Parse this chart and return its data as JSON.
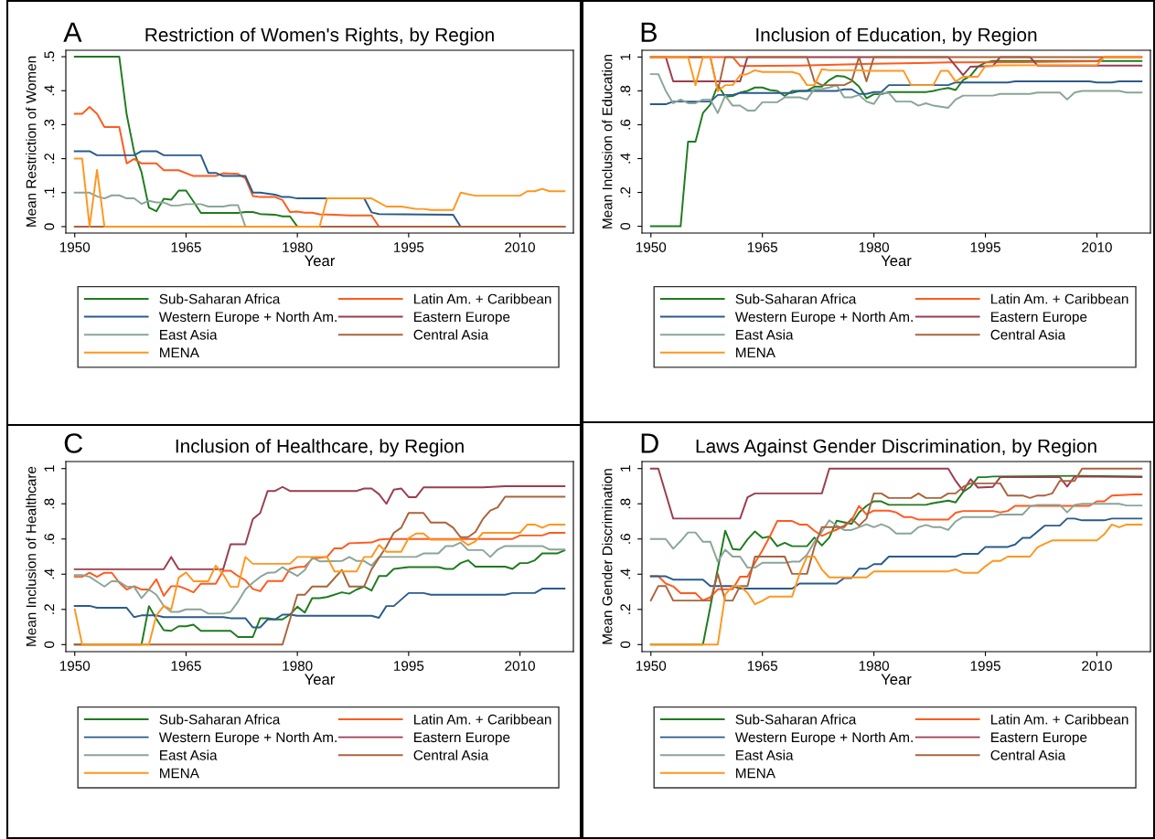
{
  "chart_data": [
    {
      "type": "line",
      "title": "Restriction of Women's Rights, by Region",
      "xlabel": "Year",
      "ylabel": "Mean Restriction of Women",
      "annotations": [
        "A"
      ],
      "legend": "bottom",
      "xlim": [
        1948.8,
        2017.2
      ],
      "xticks": [
        1950,
        1965,
        1980,
        1995,
        2010
      ],
      "ylim": [
        -0.019,
        0.519
      ],
      "yticks": [
        {
          "value": 0,
          "label": "0"
        },
        {
          "value": 0.1,
          "label": ".1"
        },
        {
          "value": 0.2,
          "label": ".2"
        },
        {
          "value": 0.3,
          "label": ".3"
        },
        {
          "value": 0.4,
          "label": ".4"
        },
        {
          "value": 0.5,
          "label": ".5"
        }
      ],
      "series": [
        {
          "name": "Sub-Saharan Africa",
          "color": "#1e7b1e",
          "x": [
            1950,
            1956,
            1957,
            1958,
            1959,
            1960,
            1961,
            1962,
            1963,
            1964,
            1965,
            1966,
            1967,
            1972,
            1973,
            1974,
            1975,
            1977,
            1978,
            1979,
            1980,
            2016
          ],
          "values": [
            0.5,
            0.5,
            0.33,
            0.22,
            0.16,
            0.056,
            0.045,
            0.082,
            0.079,
            0.106,
            0.106,
            0.074,
            0.04,
            0.04,
            0.043,
            0.043,
            0.037,
            0.035,
            0.03,
            0.03,
            0,
            0
          ]
        },
        {
          "name": "Latin Am. + Caribbean",
          "color": "#ff5a1e",
          "x": [
            1950,
            1951,
            1952,
            1953,
            1954,
            1956,
            1957,
            1958,
            1959,
            1961,
            1962,
            1964,
            1966,
            1969,
            1970,
            1972,
            1973,
            1974,
            1975,
            1977,
            1978,
            1979,
            1980,
            1981,
            1982,
            1983,
            1985,
            1987,
            1990,
            1991,
            2016
          ],
          "values": [
            0.332,
            0.332,
            0.352,
            0.332,
            0.293,
            0.293,
            0.186,
            0.199,
            0.186,
            0.186,
            0.166,
            0.166,
            0.149,
            0.149,
            0.157,
            0.155,
            0.142,
            0.09,
            0.087,
            0.087,
            0.078,
            0.043,
            0.044,
            0.041,
            0.041,
            0.036,
            0.035,
            0.033,
            0.033,
            0,
            0
          ]
        },
        {
          "name": "Western Europe + North Am.",
          "color": "#2a5b8c",
          "x": [
            1950,
            1952,
            1953,
            1958,
            1959,
            1961,
            1962,
            1967,
            1968,
            1969,
            1970,
            1973,
            1974,
            1975,
            1977,
            1978,
            1979,
            1980,
            1989,
            1990,
            1991,
            2001,
            2002,
            2016
          ],
          "values": [
            0.222,
            0.222,
            0.21,
            0.21,
            0.222,
            0.222,
            0.21,
            0.21,
            0.158,
            0.158,
            0.149,
            0.149,
            0.1,
            0.1,
            0.094,
            0.087,
            0.087,
            0.083,
            0.083,
            0.042,
            0.037,
            0.035,
            0,
            0
          ]
        },
        {
          "name": "Eastern Europe",
          "color": "#9a3d4f"
        },
        {
          "name": "East Asia",
          "color": "#8aa597",
          "x": [
            1950,
            1952,
            1953,
            1954,
            1955,
            1956,
            1957,
            1958,
            1959,
            1960,
            1961,
            1962,
            1963,
            1964,
            1965,
            1967,
            1968,
            1970,
            1971,
            1972,
            1973
          ],
          "values": [
            0.1,
            0.1,
            0.089,
            0.083,
            0.092,
            0.092,
            0.083,
            0.083,
            0.067,
            0.076,
            0.071,
            0.071,
            0.062,
            0.062,
            0.066,
            0.066,
            0.059,
            0.059,
            0.063,
            0.063,
            0
          ]
        },
        {
          "name": "Central Asia",
          "color": "#a9643c",
          "x": [
            1950,
            2016
          ],
          "values": [
            0,
            0
          ]
        },
        {
          "name": "MENA",
          "color": "#ff961e",
          "x": [
            1950,
            1951,
            1952,
            1953,
            1954,
            1983,
            1984,
            1990,
            1992,
            1994,
            1996,
            1997,
            1998,
            2001,
            2002,
            2004,
            2010,
            2011,
            2012,
            2013,
            2014,
            2016
          ],
          "values": [
            0.2,
            0.2,
            0,
            0.167,
            0,
            0,
            0.083,
            0.083,
            0.059,
            0.059,
            0.052,
            0.052,
            0.049,
            0.049,
            0.1,
            0.091,
            0.091,
            0.104,
            0.104,
            0.111,
            0.104,
            0.104
          ]
        }
      ]
    },
    {
      "type": "line",
      "title": "Inclusion of Education, by Region",
      "xlabel": "Year",
      "ylabel": "Mean Inclusion of Education",
      "annotations": [
        "B"
      ],
      "legend": "bottom",
      "xlim": [
        1948.8,
        2017.2
      ],
      "xticks": [
        1950,
        1965,
        1980,
        1995,
        2010
      ],
      "ylim": [
        -0.04,
        1.04
      ],
      "yticks": [
        {
          "value": 0,
          "label": "0"
        },
        {
          "value": 0.2,
          "label": ".2"
        },
        {
          "value": 0.4,
          "label": ".4"
        },
        {
          "value": 0.6,
          "label": ".6"
        },
        {
          "value": 0.8,
          "label": ".8"
        },
        {
          "value": 1,
          "label": "1"
        }
      ],
      "series": [
        {
          "name": "Sub-Saharan Africa",
          "color": "#1e7b1e",
          "x": [
            1950,
            1954,
            1955,
            1956,
            1957,
            1958,
            1959,
            1960,
            1961,
            1962,
            1963,
            1964,
            1965,
            1966,
            1967,
            1968,
            1969,
            1971,
            1972,
            1973,
            1974,
            1975,
            1976,
            1977,
            1978,
            1979,
            1980,
            1981,
            1982,
            1987,
            1988,
            1989,
            1990,
            1991,
            1992,
            1993,
            1994,
            1995,
            1996,
            2016
          ],
          "values": [
            0,
            0,
            0.5,
            0.5,
            0.669,
            0.72,
            0.834,
            0.766,
            0.77,
            0.79,
            0.8,
            0.82,
            0.82,
            0.805,
            0.8,
            0.77,
            0.8,
            0.8,
            0.825,
            0.825,
            0.864,
            0.889,
            0.885,
            0.864,
            0.825,
            0.756,
            0.78,
            0.78,
            0.793,
            0.793,
            0.8,
            0.81,
            0.817,
            0.805,
            0.864,
            0.889,
            0.943,
            0.967,
            0.977,
            0.977
          ]
        },
        {
          "name": "Latin Am. + Caribbean",
          "color": "#ff5a1e",
          "x": [
            1950,
            1961,
            1962,
            1970,
            1980,
            1990,
            2000,
            2010,
            2011,
            2016
          ],
          "values": [
            1,
            1,
            0.947,
            0.95,
            0.96,
            0.968,
            0.97,
            0.975,
            1,
            1
          ]
        },
        {
          "name": "Western Europe + North Am.",
          "color": "#2a5b8c",
          "x": [
            1950,
            1952,
            1953,
            1958,
            1959,
            1961,
            1962,
            1969,
            1970,
            1975,
            1976,
            1977,
            1978,
            1979,
            1980,
            1981,
            1982,
            1990,
            1991,
            1998,
            1999,
            2009,
            2010,
            2012,
            2013,
            2016
          ],
          "values": [
            0.721,
            0.721,
            0.737,
            0.737,
            0.776,
            0.776,
            0.788,
            0.788,
            0.8,
            0.8,
            0.809,
            0.809,
            0.782,
            0.782,
            0.793,
            0.793,
            0.834,
            0.834,
            0.85,
            0.85,
            0.856,
            0.856,
            0.85,
            0.85,
            0.856,
            0.856
          ]
        },
        {
          "name": "Eastern Europe",
          "color": "#9a3d4f",
          "x": [
            1950,
            1952,
            1953,
            1962,
            1963,
            1990,
            1992,
            1993,
            1996,
            1997,
            2001,
            2002,
            2016
          ],
          "values": [
            1,
            1,
            0.856,
            0.856,
            1,
            1,
            0.893,
            0.943,
            0.947,
            1,
            1,
            0.95,
            0.95
          ]
        },
        {
          "name": "East Asia",
          "color": "#8aa597",
          "x": [
            1950,
            1951,
            1952,
            1953,
            1954,
            1955,
            1956,
            1957,
            1958,
            1959,
            1960,
            1961,
            1962,
            1963,
            1964,
            1965,
            1967,
            1968,
            1970,
            1971,
            1972,
            1973,
            1974,
            1975,
            1976,
            1977,
            1978,
            1979,
            1980,
            1981,
            1982,
            1983,
            1985,
            1986,
            1987,
            1988,
            1990,
            1991,
            1992,
            1996,
            1997,
            2001,
            2002,
            2005,
            2006,
            2007,
            2008,
            2013,
            2014,
            2016
          ],
          "values": [
            0.899,
            0.899,
            0.8,
            0.727,
            0.749,
            0.727,
            0.727,
            0.749,
            0.749,
            0.669,
            0.772,
            0.713,
            0.713,
            0.684,
            0.684,
            0.733,
            0.733,
            0.762,
            0.762,
            0.749,
            0.811,
            0.811,
            0.82,
            0.834,
            0.762,
            0.762,
            0.776,
            0.737,
            0.723,
            0.788,
            0.788,
            0.737,
            0.737,
            0.713,
            0.727,
            0.713,
            0.7,
            0.749,
            0.772,
            0.772,
            0.782,
            0.782,
            0.79,
            0.79,
            0.749,
            0.79,
            0.8,
            0.8,
            0.79,
            0.79
          ]
        },
        {
          "name": "Central Asia",
          "color": "#a9643c",
          "x": [
            1950,
            1958,
            1959,
            1960,
            1971,
            1972,
            1973,
            1976,
            1977,
            1978,
            1979,
            1980,
            2016
          ],
          "values": [
            1,
            1,
            0.8,
            1,
            1,
            0.856,
            0.834,
            0.834,
            0.856,
            1,
            0.856,
            1,
            1
          ]
        },
        {
          "name": "MENA",
          "color": "#ff961e",
          "x": [
            1950,
            1955,
            1956,
            1957,
            1958,
            1959,
            1960,
            1961,
            1962,
            1963,
            1964,
            1965,
            1969,
            1970,
            1971,
            1972,
            1973,
            1974,
            1978,
            1979,
            1984,
            1985,
            1988,
            1989,
            1990,
            1991,
            1992,
            1994,
            1995,
            1997,
            2010,
            2011,
            2016
          ],
          "values": [
            1,
            1,
            0.834,
            1,
            1,
            0.8,
            0.834,
            0.834,
            0.893,
            0.9,
            0.922,
            0.912,
            0.912,
            0.899,
            0.834,
            0.834,
            0.928,
            0.922,
            0.922,
            0.918,
            0.918,
            0.834,
            0.834,
            0.918,
            0.918,
            0.856,
            0.883,
            0.883,
            0.947,
            0.951,
            0.953,
            1,
            1
          ]
        }
      ]
    },
    {
      "type": "line",
      "title": "Inclusion of Healthcare, by Region",
      "xlabel": "Year",
      "ylabel": "Mean Inclusion of Healthcare",
      "annotations": [
        "C"
      ],
      "legend": "bottom",
      "xlim": [
        1948.8,
        2017.2
      ],
      "xticks": [
        1950,
        1965,
        1980,
        1995,
        2010
      ],
      "ylim": [
        -0.04,
        1.04
      ],
      "yticks": [
        {
          "value": 0,
          "label": "0"
        },
        {
          "value": 0.2,
          "label": ".2"
        },
        {
          "value": 0.4,
          "label": ".4"
        },
        {
          "value": 0.6,
          "label": ".6"
        },
        {
          "value": 0.8,
          "label": ".8"
        },
        {
          "value": 1,
          "label": "1"
        }
      ],
      "series": [
        {
          "name": "Sub-Saharan Africa",
          "color": "#1e7b1e",
          "x": [
            1950,
            1959,
            1960,
            1961,
            1962,
            1963,
            1964,
            1965,
            1966,
            1967,
            1971,
            1972,
            1974,
            1975,
            1976,
            1977,
            1978,
            1979,
            1980,
            1981,
            1982,
            1983,
            1984,
            1986,
            1987,
            1988,
            1989,
            1990,
            1991,
            1992,
            1993,
            1995,
            1999,
            2000,
            2001,
            2002,
            2003,
            2004,
            2008,
            2009,
            2010,
            2011,
            2012,
            2013,
            2015,
            2016
          ],
          "values": [
            0,
            0,
            0.219,
            0.146,
            0.082,
            0.078,
            0.104,
            0.104,
            0.113,
            0.078,
            0.078,
            0.043,
            0.043,
            0.15,
            0.15,
            0.143,
            0.143,
            0.17,
            0.215,
            0.182,
            0.264,
            0.264,
            0.27,
            0.297,
            0.289,
            0.313,
            0.33,
            0.307,
            0.39,
            0.39,
            0.43,
            0.44,
            0.44,
            0.43,
            0.43,
            0.463,
            0.479,
            0.443,
            0.443,
            0.43,
            0.463,
            0.463,
            0.479,
            0.518,
            0.518,
            0.535
          ]
        },
        {
          "name": "Latin Am. + Caribbean",
          "color": "#ff5a1e",
          "x": [
            1950,
            1951,
            1952,
            1953,
            1954,
            1955,
            1956,
            1957,
            1958,
            1959,
            1960,
            1961,
            1962,
            1963,
            1964,
            1965,
            1966,
            1967,
            1969,
            1970,
            1971,
            1972,
            1973,
            1974,
            1975,
            1976,
            1978,
            1979,
            1980,
            1981,
            1982,
            1984,
            1985,
            1986,
            1987,
            1990,
            1991,
            1992,
            2009,
            2010,
            2013,
            2014,
            2016
          ],
          "values": [
            0.385,
            0.385,
            0.408,
            0.385,
            0.408,
            0.408,
            0.352,
            0.313,
            0.332,
            0.313,
            0.313,
            0.371,
            0.277,
            0.332,
            0.332,
            0.316,
            0.297,
            0.346,
            0.346,
            0.42,
            0.42,
            0.39,
            0.365,
            0.316,
            0.303,
            0.361,
            0.361,
            0.43,
            0.44,
            0.443,
            0.488,
            0.498,
            0.547,
            0.547,
            0.576,
            0.58,
            0.596,
            0.6,
            0.6,
            0.62,
            0.62,
            0.635,
            0.635
          ]
        },
        {
          "name": "Western Europe + North Am.",
          "color": "#2a5b8c",
          "x": [
            1950,
            1952,
            1953,
            1957,
            1958,
            1959,
            1961,
            1962,
            1970,
            1971,
            1973,
            1974,
            1975,
            1976,
            1977,
            1978,
            1979,
            1980,
            1990,
            1991,
            1992,
            1993,
            1995,
            1997,
            1998,
            2008,
            2009,
            2012,
            2013,
            2016
          ],
          "values": [
            0.22,
            0.22,
            0.209,
            0.209,
            0.156,
            0.166,
            0.166,
            0.156,
            0.156,
            0.15,
            0.15,
            0.098,
            0.098,
            0.143,
            0.143,
            0.17,
            0.17,
            0.164,
            0.164,
            0.152,
            0.219,
            0.219,
            0.293,
            0.293,
            0.283,
            0.283,
            0.293,
            0.293,
            0.318,
            0.318
          ]
        },
        {
          "name": "Eastern Europe",
          "color": "#9a3d4f",
          "x": [
            1950,
            1962,
            1963,
            1964,
            1970,
            1971,
            1973,
            1974,
            1975,
            1976,
            1977,
            1978,
            1979,
            1988,
            1989,
            1990,
            1991,
            1992,
            1993,
            1994,
            1995,
            1996,
            1997,
            2005,
            2008,
            2016
          ],
          "values": [
            0.428,
            0.428,
            0.498,
            0.428,
            0.428,
            0.57,
            0.57,
            0.713,
            0.748,
            0.873,
            0.873,
            0.896,
            0.873,
            0.873,
            0.887,
            0.887,
            0.855,
            0.8,
            0.88,
            0.887,
            0.838,
            0.838,
            0.893,
            0.893,
            0.9,
            0.9
          ]
        },
        {
          "name": "East Asia",
          "color": "#8aa597",
          "x": [
            1950,
            1951,
            1952,
            1953,
            1954,
            1955,
            1956,
            1957,
            1958,
            1959,
            1960,
            1961,
            1962,
            1963,
            1964,
            1965,
            1967,
            1968,
            1970,
            1971,
            1972,
            1973,
            1974,
            1975,
            1976,
            1977,
            1978,
            1979,
            1980,
            1981,
            1982,
            1983,
            1986,
            1987,
            1988,
            1989,
            1990,
            1991,
            1996,
            1997,
            1999,
            2000,
            2001,
            2002,
            2003,
            2005,
            2006,
            2007,
            2008,
            2013,
            2014,
            2016
          ],
          "values": [
            0.395,
            0.395,
            0.385,
            0.357,
            0.33,
            0.361,
            0.357,
            0.33,
            0.328,
            0.264,
            0.313,
            0.283,
            0.22,
            0.186,
            0.186,
            0.2,
            0.2,
            0.176,
            0.176,
            0.186,
            0.244,
            0.313,
            0.352,
            0.385,
            0.408,
            0.41,
            0.44,
            0.414,
            0.39,
            0.424,
            0.494,
            0.473,
            0.475,
            0.498,
            0.475,
            0.475,
            0.449,
            0.498,
            0.498,
            0.518,
            0.518,
            0.56,
            0.56,
            0.58,
            0.537,
            0.537,
            0.498,
            0.54,
            0.56,
            0.56,
            0.54,
            0.54
          ]
        },
        {
          "name": "Central Asia",
          "color": "#a9643c",
          "x": [
            1950,
            1978,
            1980,
            1981,
            1982,
            1984,
            1986,
            1987,
            1989,
            1990,
            1992,
            1993,
            1994,
            1995,
            1997,
            1998,
            2000,
            2001,
            2002,
            2003,
            2004,
            2005,
            2006,
            2007,
            2008,
            2016
          ],
          "values": [
            0,
            0,
            0.283,
            0.283,
            0.33,
            0.33,
            0.424,
            0.33,
            0.33,
            0.428,
            0.557,
            0.635,
            0.664,
            0.748,
            0.748,
            0.693,
            0.693,
            0.664,
            0.61,
            0.61,
            0.64,
            0.713,
            0.762,
            0.78,
            0.84,
            0.84
          ]
        },
        {
          "name": "MENA",
          "color": "#ff961e",
          "x": [
            1950,
            1951,
            1960,
            1961,
            1962,
            1963,
            1964,
            1965,
            1966,
            1968,
            1969,
            1970,
            1971,
            1972,
            1973,
            1974,
            1979,
            1980,
            1984,
            1985,
            1988,
            1989,
            1990,
            1991,
            1992,
            1994,
            1995,
            1996,
            1997,
            1998,
            2002,
            2003,
            2004,
            2005,
            2010,
            2011,
            2012,
            2013,
            2014,
            2016
          ],
          "values": [
            0.2,
            0,
            0,
            0.166,
            0.22,
            0.2,
            0.38,
            0.41,
            0.36,
            0.36,
            0.449,
            0.4,
            0.328,
            0.328,
            0.498,
            0.459,
            0.459,
            0.498,
            0.498,
            0.416,
            0.416,
            0.498,
            0.498,
            0.566,
            0.527,
            0.527,
            0.605,
            0.631,
            0.631,
            0.596,
            0.596,
            0.566,
            0.586,
            0.635,
            0.635,
            0.682,
            0.682,
            0.664,
            0.682,
            0.682
          ]
        }
      ]
    },
    {
      "type": "line",
      "title": "Laws Against Gender Discrimination, by Region",
      "xlabel": "Year",
      "ylabel": "Mean Gender Discrimination",
      "annotations": [
        "D"
      ],
      "legend": "bottom",
      "xlim": [
        1948.8,
        2017.2
      ],
      "xticks": [
        1950,
        1965,
        1980,
        1995,
        2010
      ],
      "ylim": [
        -0.04,
        1.04
      ],
      "yticks": [
        {
          "value": 0,
          "label": "0"
        },
        {
          "value": 0.2,
          "label": ".2"
        },
        {
          "value": 0.4,
          "label": ".4"
        },
        {
          "value": 0.6,
          "label": ".6"
        },
        {
          "value": 0.8,
          "label": ".8"
        },
        {
          "value": 1,
          "label": "1"
        }
      ],
      "series": [
        {
          "name": "Sub-Saharan Africa",
          "color": "#1e7b1e",
          "x": [
            1950,
            1957,
            1960,
            1961,
            1962,
            1963,
            1964,
            1965,
            1966,
            1967,
            1968,
            1969,
            1971,
            1972,
            1973,
            1974,
            1975,
            1977,
            1978,
            1979,
            1980,
            1981,
            1982,
            1987,
            1988,
            1990,
            1991,
            1992,
            1993,
            1994,
            1995,
            1996,
            2008,
            2016
          ],
          "values": [
            0,
            0,
            0.647,
            0.543,
            0.539,
            0.598,
            0.643,
            0.606,
            0.614,
            0.559,
            0.578,
            0.559,
            0.559,
            0.608,
            0.563,
            0.608,
            0.704,
            0.686,
            0.751,
            0.788,
            0.814,
            0.814,
            0.794,
            0.794,
            0.804,
            0.818,
            0.808,
            0.867,
            0.896,
            0.951,
            0.951,
            0.955,
            0.959,
            0.955
          ]
        },
        {
          "name": "Latin Am. + Caribbean",
          "color": "#ff5a1e",
          "x": [
            1950,
            1951,
            1952,
            1953,
            1954,
            1956,
            1957,
            1958,
            1959,
            1961,
            1962,
            1963,
            1964,
            1965,
            1966,
            1967,
            1969,
            1970,
            1971,
            1972,
            1973,
            1974,
            1975,
            1976,
            1977,
            1978,
            1979,
            1980,
            1982,
            1983,
            1984,
            1985,
            1986,
            1990,
            1991,
            1992,
            1996,
            1997,
            1998,
            1999,
            2009,
            2010,
            2011,
            2012,
            2015,
            2016
          ],
          "values": [
            0.388,
            0.388,
            0.347,
            0.331,
            0.292,
            0.292,
            0.251,
            0.269,
            0.314,
            0.314,
            0.386,
            0.386,
            0.465,
            0.535,
            0.614,
            0.702,
            0.702,
            0.682,
            0.682,
            0.647,
            0.618,
            0.637,
            0.653,
            0.676,
            0.706,
            0.788,
            0.739,
            0.761,
            0.761,
            0.751,
            0.725,
            0.725,
            0.71,
            0.71,
            0.749,
            0.759,
            0.759,
            0.751,
            0.759,
            0.788,
            0.788,
            0.814,
            0.814,
            0.847,
            0.853,
            0.853
          ]
        },
        {
          "name": "Western Europe + North Am.",
          "color": "#2a5b8c",
          "x": [
            1950,
            1952,
            1953,
            1957,
            1958,
            1961,
            1962,
            1969,
            1970,
            1975,
            1976,
            1977,
            1978,
            1979,
            1980,
            1981,
            1982,
            1991,
            1992,
            1994,
            1995,
            1998,
            1999,
            2000,
            2001,
            2002,
            2003,
            2005,
            2006,
            2007,
            2008,
            2011,
            2012,
            2016
          ],
          "values": [
            0.388,
            0.388,
            0.369,
            0.369,
            0.333,
            0.333,
            0.318,
            0.318,
            0.347,
            0.347,
            0.378,
            0.378,
            0.431,
            0.431,
            0.457,
            0.457,
            0.5,
            0.5,
            0.516,
            0.516,
            0.555,
            0.555,
            0.569,
            0.606,
            0.606,
            0.641,
            0.676,
            0.676,
            0.716,
            0.716,
            0.706,
            0.706,
            0.716,
            0.716
          ]
        },
        {
          "name": "Eastern Europe",
          "color": "#9a3d4f",
          "x": [
            1950,
            1951,
            1953,
            1962,
            1963,
            1964,
            1973,
            1974,
            1990,
            1991,
            1992,
            1993,
            1994,
            1996,
            1997,
            2005,
            2006,
            2007,
            2016
          ],
          "values": [
            1,
            1,
            0.716,
            0.716,
            0.837,
            0.859,
            0.859,
            1,
            1,
            0.93,
            0.873,
            0.94,
            0.892,
            0.896,
            0.951,
            0.951,
            0.898,
            0.955,
            0.951
          ]
        },
        {
          "name": "East Asia",
          "color": "#8aa597",
          "x": [
            1950,
            1952,
            1953,
            1954,
            1955,
            1956,
            1957,
            1958,
            1959,
            1960,
            1961,
            1962,
            1963,
            1964,
            1965,
            1968,
            1969,
            1970,
            1971,
            1972,
            1973,
            1974,
            1975,
            1976,
            1977,
            1978,
            1979,
            1980,
            1981,
            1982,
            1983,
            1985,
            1986,
            1987,
            1988,
            1989,
            1990,
            1991,
            1992,
            1996,
            1997,
            2000,
            2001,
            2002,
            2005,
            2006,
            2007,
            2008,
            2013,
            2014,
            2016
          ],
          "values": [
            0.6,
            0.6,
            0.545,
            0.588,
            0.637,
            0.637,
            0.584,
            0.584,
            0.471,
            0.539,
            0.5,
            0.5,
            0.437,
            0.437,
            0.465,
            0.465,
            0.471,
            0.471,
            0.51,
            0.584,
            0.641,
            0.706,
            0.676,
            0.651,
            0.651,
            0.667,
            0.684,
            0.667,
            0.684,
            0.667,
            0.631,
            0.631,
            0.667,
            0.68,
            0.667,
            0.667,
            0.651,
            0.7,
            0.725,
            0.725,
            0.739,
            0.739,
            0.784,
            0.794,
            0.794,
            0.751,
            0.794,
            0.8,
            0.8,
            0.79,
            0.79
          ]
        },
        {
          "name": "Central Asia",
          "color": "#a9643c",
          "x": [
            1950,
            1951,
            1952,
            1953,
            1958,
            1959,
            1960,
            1961,
            1962,
            1963,
            1964,
            1968,
            1969,
            1971,
            1972,
            1973,
            1976,
            1977,
            1978,
            1979,
            1980,
            1981,
            1982,
            1985,
            1986,
            1987,
            1989,
            1990,
            1991,
            1992,
            1993,
            1997,
            1998,
            2000,
            2001,
            2002,
            2003,
            2004,
            2005,
            2007,
            2008,
            2016
          ],
          "values": [
            0.251,
            0.333,
            0.333,
            0.25,
            0.25,
            0.402,
            0.25,
            0.25,
            0.333,
            0.333,
            0.5,
            0.5,
            0.402,
            0.402,
            0.555,
            0.667,
            0.667,
            0.716,
            0.676,
            0.716,
            0.859,
            0.859,
            0.833,
            0.833,
            0.859,
            0.833,
            0.833,
            0.859,
            0.859,
            0.896,
            0.916,
            0.916,
            0.847,
            0.847,
            0.833,
            0.847,
            0.847,
            0.859,
            0.93,
            0.93,
            1,
            1
          ]
        },
        {
          "name": "MENA",
          "color": "#ff961e",
          "x": [
            1950,
            1959,
            1960,
            1961,
            1962,
            1963,
            1964,
            1965,
            1966,
            1969,
            1970,
            1971,
            1972,
            1973,
            1974,
            1979,
            1980,
            1990,
            1991,
            1992,
            1994,
            1995,
            1996,
            1997,
            1998,
            2001,
            2002,
            2003,
            2004,
            2010,
            2011,
            2012,
            2013,
            2014,
            2016
          ],
          "values": [
            0,
            0,
            0.284,
            0.333,
            0.333,
            0.294,
            0.229,
            0.249,
            0.273,
            0.273,
            0.402,
            0.5,
            0.5,
            0.427,
            0.382,
            0.382,
            0.416,
            0.416,
            0.427,
            0.408,
            0.408,
            0.445,
            0.475,
            0.475,
            0.5,
            0.5,
            0.553,
            0.573,
            0.592,
            0.592,
            0.627,
            0.682,
            0.667,
            0.682,
            0.682
          ]
        }
      ]
    }
  ]
}
